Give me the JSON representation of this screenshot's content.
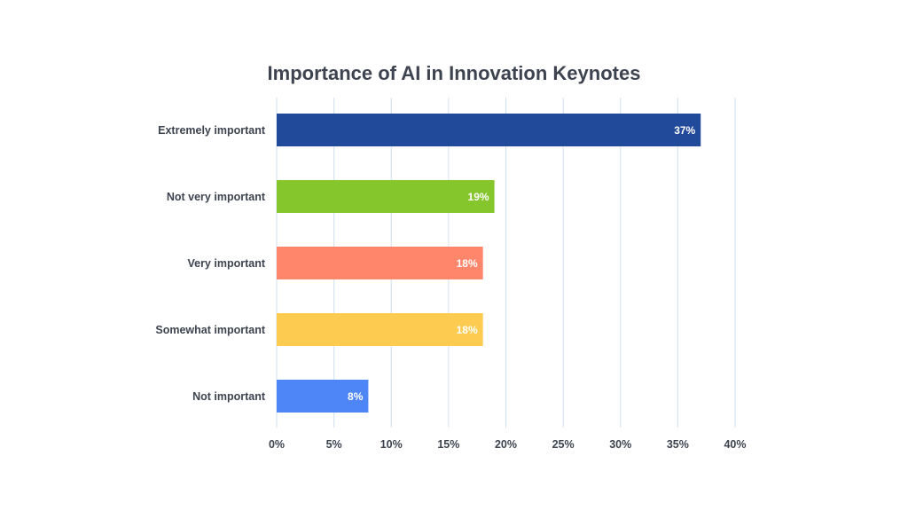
{
  "chart_data": {
    "type": "bar",
    "orientation": "horizontal",
    "title": "Importance of AI in Innovation Keynotes",
    "categories": [
      "Extremely important",
      "Not very important",
      "Very important",
      "Somewhat important",
      "Not important"
    ],
    "values": [
      37,
      19,
      18,
      18,
      8
    ],
    "data_labels": [
      "37%",
      "19%",
      "18%",
      "18%",
      "8%"
    ],
    "bar_colors": [
      "#224a9a",
      "#84c62c",
      "#ff866a",
      "#fccb50",
      "#4f86f7"
    ],
    "xlim": [
      0,
      40
    ],
    "x_ticks": [
      "0%",
      "5%",
      "10%",
      "15%",
      "20%",
      "25%",
      "30%",
      "35%",
      "40%"
    ],
    "grid": "vertical",
    "grid_color": "#cfe0f0",
    "legend": "none",
    "xlabel": "",
    "ylabel": ""
  }
}
